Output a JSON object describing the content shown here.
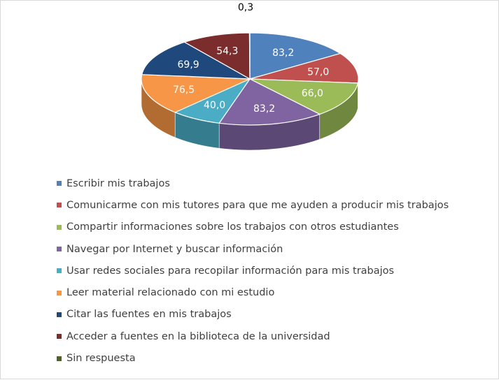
{
  "chart_data": {
    "type": "pie",
    "title": "",
    "categories": [
      "Escribir mis trabajos",
      "Comunicarme con mis tutores para que me ayuden a producir mis trabajos",
      "Compartir informaciones sobre los trabajos con otros estudiantes",
      "Navegar por Internet y buscar información",
      "Usar redes sociales para recopilar información para mis trabajos",
      "Leer material relacionado con mi estudio",
      "Citar las fuentes en mis trabajos",
      "Acceder a fuentes en la biblioteca de la universidad",
      "Sin respuesta"
    ],
    "values": [
      83.2,
      57.0,
      66.0,
      83.2,
      40.0,
      76.5,
      69.9,
      54.3,
      0.3
    ],
    "value_labels": [
      "83,2",
      "57,0",
      "66,0",
      "83,2",
      "40,0",
      "76,5",
      "69,9",
      "54,3",
      "0,3"
    ],
    "colors": [
      "#4f81bd",
      "#c0504d",
      "#9bbb59",
      "#8064a2",
      "#4bacc6",
      "#f79646",
      "#1f497d",
      "#7b2c2c",
      "#4f6228"
    ],
    "style": "3d",
    "legend_position": "bottom"
  }
}
